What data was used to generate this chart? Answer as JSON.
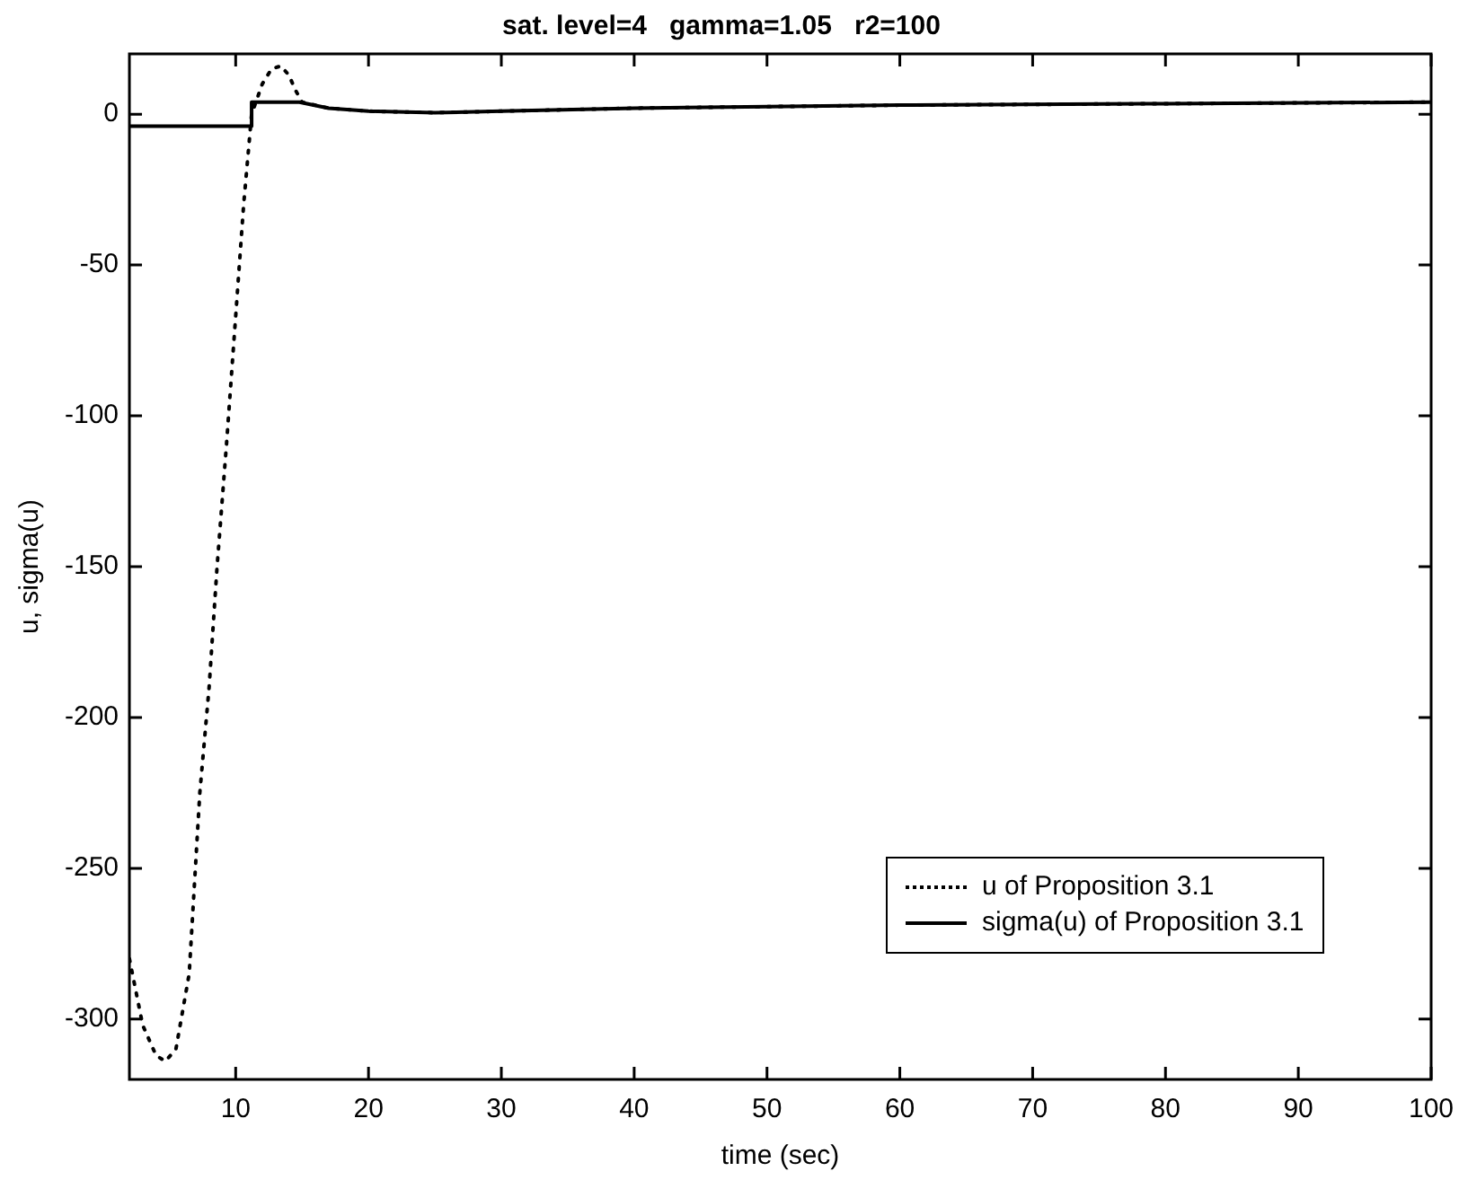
{
  "chart_data": {
    "type": "line",
    "title": "sat. level=4   gamma=1.05   r2=100",
    "xlabel": "time (sec)",
    "ylabel": "u, sigma(u)",
    "xlim": [
      2,
      100
    ],
    "xticks": [
      10,
      20,
      30,
      40,
      50,
      60,
      70,
      80,
      90,
      100
    ],
    "ylim": [
      -320,
      20
    ],
    "yticks": [
      -300,
      -250,
      -200,
      -150,
      -100,
      -50,
      0
    ],
    "grid": false,
    "legend": "bottom right",
    "series": [
      {
        "name": "u of Proposition 3.1",
        "color": "#000000",
        "line_style": "dotted",
        "x": [
          2,
          3,
          4,
          4.7,
          5.5,
          6.5,
          7.3,
          8,
          8.6,
          9.3,
          10,
          10.6,
          11.2,
          12,
          12.7,
          13.4,
          14,
          14.5,
          15,
          17,
          20,
          25,
          30,
          40,
          50,
          60,
          80,
          100
        ],
        "values": [
          -280,
          -302,
          -312,
          -314,
          -310,
          -285,
          -225,
          -190,
          -150,
          -110,
          -67,
          -30,
          0,
          10,
          15,
          16,
          13,
          8,
          4,
          2,
          1,
          0.5,
          1,
          2,
          2.5,
          3,
          3.5,
          4
        ]
      },
      {
        "name": "sigma(u) of Proposition 3.1",
        "color": "#000000",
        "line_style": "solid",
        "x": [
          2,
          11.2,
          11.2,
          14.8,
          17,
          20,
          25,
          30,
          40,
          50,
          60,
          80,
          100
        ],
        "values": [
          -4,
          -4,
          4,
          4,
          2,
          1,
          0.5,
          1,
          2,
          2.5,
          3,
          3.5,
          4
        ]
      }
    ]
  }
}
